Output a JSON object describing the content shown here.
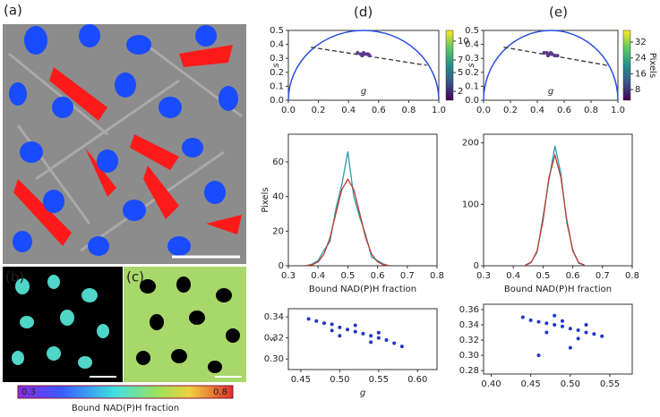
{
  "panels": {
    "a": "(a)",
    "b": "(b)",
    "c": "(c)"
  },
  "colorbar": {
    "min_label": "0.3",
    "max_label": "0.8",
    "label": "Bound NAD(P)H fraction"
  },
  "chart_data": [
    {
      "type": "scatter",
      "label": "(d)",
      "xlabel": "g",
      "ylabel": "s",
      "semicircle": true,
      "xlim": [
        0,
        1
      ],
      "ylim": [
        0,
        0.5
      ],
      "xticks": [
        {
          "value": 0,
          "label": "0.0"
        },
        0.2,
        0.4,
        0.6,
        0.8,
        {
          "value": 1,
          "label": "1.0"
        }
      ],
      "yticks": [
        {
          "value": 0,
          "label": "0.0"
        },
        0.1,
        0.2,
        0.3,
        0.4,
        0.5
      ],
      "series": [
        {
          "color": "#333333",
          "line": "dashed",
          "x": [
            0.15,
            0.92
          ],
          "values": [
            0.38,
            0.25
          ]
        },
        {
          "color": "#5b3a8a",
          "x": [
            0.46,
            0.48,
            0.5,
            0.52,
            0.54,
            0.5,
            0.49,
            0.53
          ],
          "values": [
            0.34,
            0.33,
            0.33,
            0.33,
            0.32,
            0.34,
            0.32,
            0.33
          ]
        }
      ],
      "colorbar": {
        "lim": [
          0.6,
          11.7
        ],
        "ticks": [
          2,
          5,
          7,
          10
        ]
      }
    },
    {
      "type": "scatter",
      "label": "(e)",
      "xlabel": "g",
      "ylabel": "s",
      "semicircle": true,
      "xlim": [
        0,
        1
      ],
      "ylim": [
        0,
        0.5
      ],
      "xticks": [
        {
          "value": 0,
          "label": "0.0"
        },
        0.2,
        0.4,
        0.6,
        0.8,
        {
          "value": 1,
          "label": "1.0"
        }
      ],
      "yticks": [
        {
          "value": 0,
          "label": "0.0"
        },
        0.1,
        0.2,
        0.3,
        0.4,
        0.5
      ],
      "series": [
        {
          "color": "#333333",
          "line": "dashed",
          "x": [
            0.15,
            0.92
          ],
          "values": [
            0.38,
            0.25
          ]
        },
        {
          "color": "#5b3a8a",
          "x": [
            0.45,
            0.47,
            0.49,
            0.51,
            0.53,
            0.55,
            0.5,
            0.48
          ],
          "values": [
            0.34,
            0.34,
            0.33,
            0.33,
            0.32,
            0.32,
            0.34,
            0.32
          ]
        }
      ],
      "colorbar": {
        "lim": [
          2.6,
          37.9
        ],
        "ticks": [
          8,
          16,
          24,
          32
        ],
        "label": "Pixels"
      }
    },
    {
      "type": "line",
      "xlabel": "Bound NAD(P)H fraction",
      "ylabel": "Pixels",
      "xlim": [
        0.3,
        0.8
      ],
      "ylim": [
        0,
        76
      ],
      "xticks": [
        0.3,
        0.4,
        0.5,
        0.6,
        0.7,
        0.8
      ],
      "yticks": [
        0,
        20,
        40,
        60
      ],
      "x": [
        0.36,
        0.38,
        0.4,
        0.42,
        0.44,
        0.46,
        0.48,
        0.5,
        0.52,
        0.54,
        0.56,
        0.58,
        0.6,
        0.62,
        0.64
      ],
      "series": [
        {
          "color": "#2a9bb0",
          "values": [
            0,
            1,
            3,
            9,
            14,
            33,
            47,
            66,
            40,
            28,
            18,
            5,
            3,
            1,
            0
          ]
        },
        {
          "color": "#c0392b",
          "values": [
            0.1,
            0.6,
            2.2,
            6.8,
            16.2,
            30.3,
            44.1,
            50,
            44.1,
            30.3,
            16.2,
            6.8,
            2.2,
            0.6,
            0.1
          ]
        }
      ]
    },
    {
      "type": "line",
      "xlabel": "Bound NAD(P)H fraction",
      "xlim": [
        0.3,
        0.8
      ],
      "ylim": [
        0,
        214
      ],
      "xticks": [
        0.3,
        0.4,
        0.5,
        0.6,
        0.7,
        0.8
      ],
      "yticks": [
        0,
        100,
        200
      ],
      "x": [
        0.44,
        0.46,
        0.48,
        0.5,
        0.52,
        0.54,
        0.56,
        0.58,
        0.6,
        0.62,
        0.64
      ],
      "series": [
        {
          "color": "#2a9bb0",
          "values": [
            1,
            6,
            22,
            80,
            140,
            195,
            150,
            70,
            26,
            4,
            1
          ]
        },
        {
          "color": "#c0392b",
          "values": [
            0.7,
            5.1,
            24.4,
            74,
            144,
            180,
            144,
            74,
            24.4,
            5.1,
            0.7
          ]
        }
      ]
    },
    {
      "type": "scatter",
      "xlabel": "g",
      "ylabel": "s",
      "xlim": [
        0.434,
        0.625
      ],
      "ylim": [
        0.29,
        0.3477
      ],
      "xticks": [
        0.45,
        {
          "value": 0.5,
          "label": "0.50"
        },
        0.55,
        {
          "value": 0.6,
          "label": "0.60"
        }
      ],
      "yticks": [
        {
          "value": 0.3,
          "label": "0.30"
        },
        0.32,
        0.34
      ],
      "series": [
        {
          "color": "#2236c8",
          "x": [
            0.46,
            0.47,
            0.48,
            0.49,
            0.5,
            0.51,
            0.52,
            0.53,
            0.54,
            0.55,
            0.56,
            0.57,
            0.58,
            0.5,
            0.52,
            0.54,
            0.49,
            0.55
          ],
          "values": [
            0.338,
            0.336,
            0.334,
            0.333,
            0.33,
            0.328,
            0.326,
            0.324,
            0.322,
            0.32,
            0.318,
            0.315,
            0.312,
            0.322,
            0.332,
            0.316,
            0.327,
            0.325
          ]
        }
      ]
    },
    {
      "type": "scatter",
      "xlim": [
        0.3904,
        0.5783
      ],
      "ylim": [
        0.2755,
        0.367
      ],
      "xticks": [
        {
          "value": 0.4,
          "label": "0.40"
        },
        0.45,
        {
          "value": 0.5,
          "label": "0.50"
        },
        0.55
      ],
      "yticks": [
        0.28,
        {
          "value": 0.3,
          "label": "0.30"
        },
        0.32,
        0.34,
        0.36
      ],
      "series": [
        {
          "color": "#2236c8",
          "x": [
            0.44,
            0.45,
            0.46,
            0.47,
            0.48,
            0.49,
            0.5,
            0.51,
            0.52,
            0.53,
            0.54,
            0.47,
            0.49,
            0.51,
            0.46,
            0.5,
            0.48,
            0.52
          ],
          "values": [
            0.35,
            0.346,
            0.344,
            0.342,
            0.34,
            0.338,
            0.335,
            0.333,
            0.33,
            0.328,
            0.325,
            0.33,
            0.345,
            0.322,
            0.3,
            0.31,
            0.352,
            0.34
          ]
        }
      ]
    }
  ]
}
